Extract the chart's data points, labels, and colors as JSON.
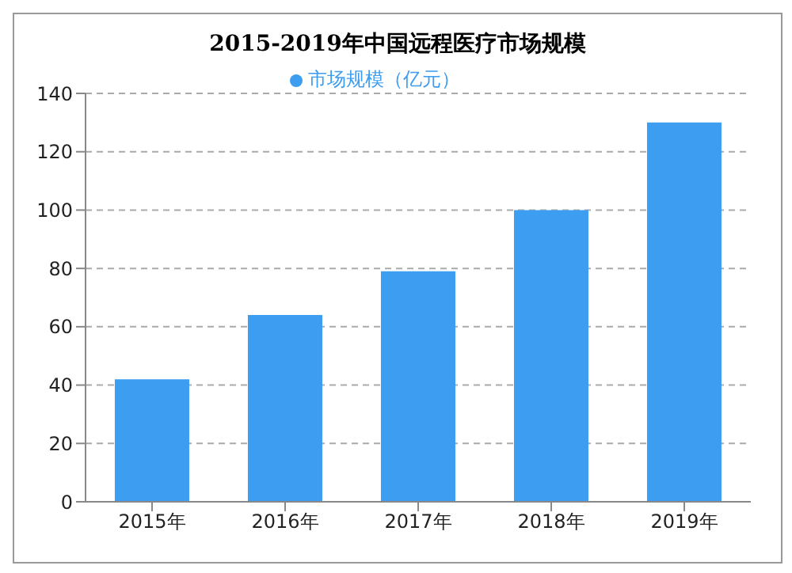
{
  "chart_data": {
    "type": "bar",
    "title": "2015-2019年中国远程医疗市场规模",
    "categories": [
      "2015年",
      "2016年",
      "2017年",
      "2018年",
      "2019年"
    ],
    "series": [
      {
        "name": "市场规模（亿元）",
        "color": "#3d9df0",
        "values": [
          42,
          64,
          79,
          100,
          130
        ]
      }
    ],
    "ylim": [
      0,
      140
    ],
    "yticks": [
      0,
      20,
      40,
      60,
      80,
      100,
      120,
      140
    ],
    "grid": "y",
    "legend": "top"
  }
}
